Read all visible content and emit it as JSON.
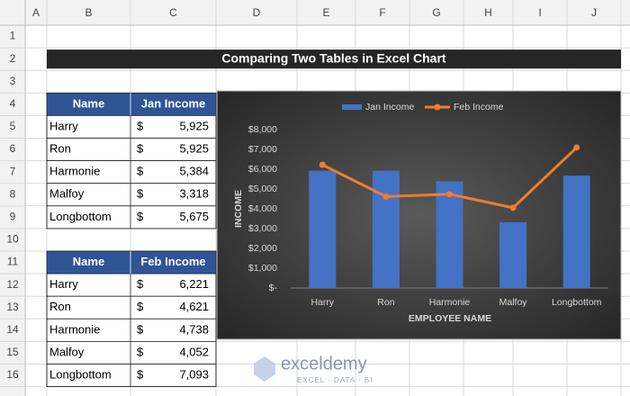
{
  "sheet": {
    "columns": [
      "A",
      "B",
      "C",
      "D",
      "E",
      "F",
      "G",
      "H",
      "I",
      "J"
    ],
    "rows": [
      1,
      2,
      3,
      4,
      5,
      6,
      7,
      8,
      9,
      10,
      11,
      12,
      13,
      14,
      15,
      16
    ]
  },
  "title": "Comparing Two Tables in Excel Chart",
  "tables": [
    {
      "header": [
        "Name",
        "Jan Income"
      ],
      "rows": [
        [
          "Harry",
          "$",
          "5,925"
        ],
        [
          "Ron",
          "$",
          "5,925"
        ],
        [
          "Harmonie",
          "$",
          "5,384"
        ],
        [
          "Malfoy",
          "$",
          "3,318"
        ],
        [
          "Longbottom",
          "$",
          "5,675"
        ]
      ]
    },
    {
      "header": [
        "Name",
        "Feb Income"
      ],
      "rows": [
        [
          "Harry",
          "$",
          "6,221"
        ],
        [
          "Ron",
          "$",
          "4,621"
        ],
        [
          "Harmonie",
          "$",
          "4,738"
        ],
        [
          "Malfoy",
          "$",
          "4,052"
        ],
        [
          "Longbottom",
          "$",
          "7,093"
        ]
      ]
    }
  ],
  "chart_data": {
    "type": "bar",
    "categories": [
      "Harry",
      "Ron",
      "Harmonie",
      "Malfoy",
      "Longbottom"
    ],
    "series": [
      {
        "name": "Jan Income",
        "type": "bar",
        "color": "#4472c4",
        "values": [
          5925,
          5925,
          5384,
          3318,
          5675
        ]
      },
      {
        "name": "Feb Income",
        "type": "line",
        "color": "#ed7d31",
        "values": [
          6221,
          4621,
          4738,
          4052,
          7093
        ]
      }
    ],
    "ylim": [
      0,
      8000
    ],
    "yticks": [
      {
        "value": 0,
        "label": "$-"
      },
      {
        "value": 1000,
        "label": "$1,000"
      },
      {
        "value": 2000,
        "label": "$2,000"
      },
      {
        "value": 3000,
        "label": "$3,000"
      },
      {
        "value": 4000,
        "label": "$4,000"
      },
      {
        "value": 5000,
        "label": "$5,000"
      },
      {
        "value": 6000,
        "label": "$6,000"
      },
      {
        "value": 7000,
        "label": "$7,000"
      },
      {
        "value": 8000,
        "label": "$8,000"
      }
    ],
    "x_label": "EMPLOYEE NAME",
    "y_label": "INCOME",
    "grid": false,
    "legend": "top"
  },
  "watermark": {
    "name": "exceldemy",
    "tagline": "EXCEL · DATA · BI"
  }
}
